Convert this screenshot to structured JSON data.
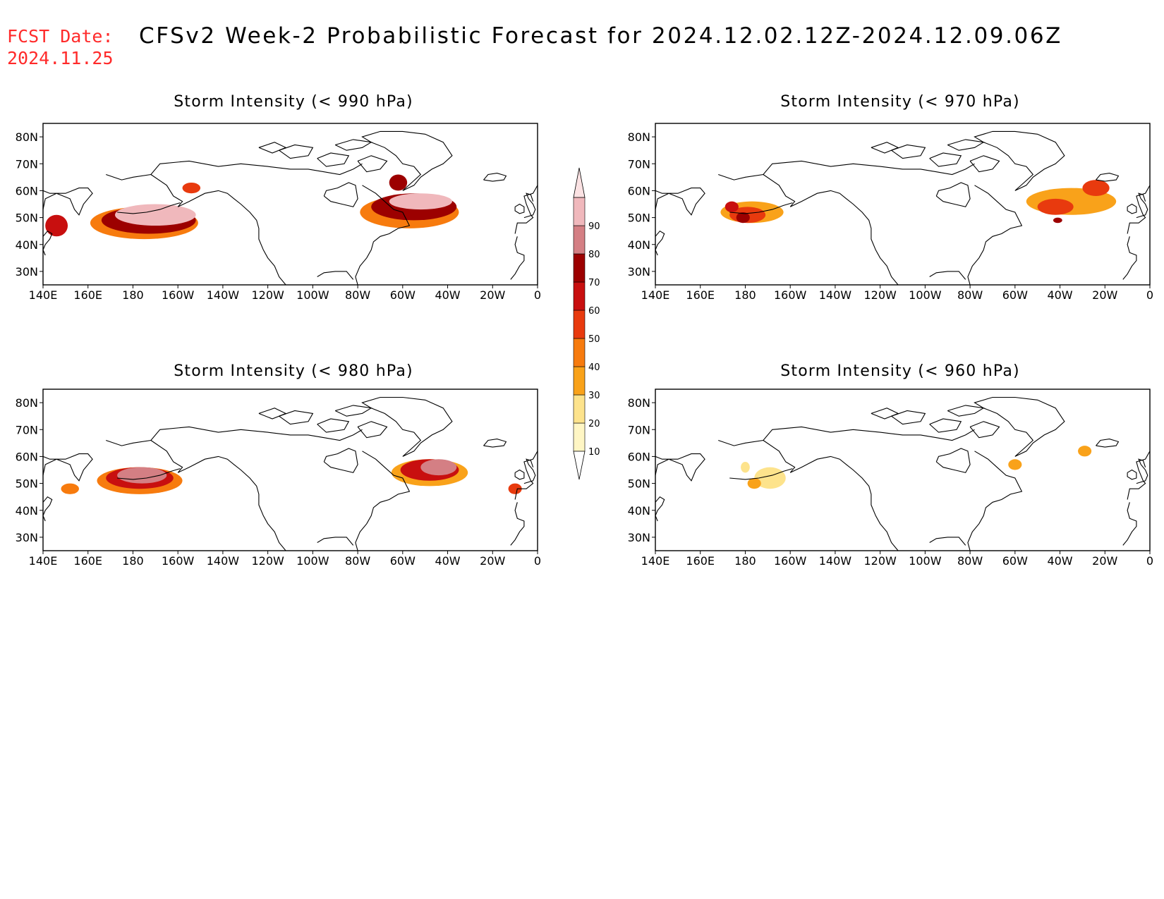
{
  "header": {
    "fcst_label": "FCST Date:",
    "fcst_date": "2024.11.25",
    "title": "CFSv2 Week-2 Probabilistic Forecast for 2024.12.02.12Z-2024.12.09.06Z"
  },
  "colorbar": {
    "levels": [
      "10",
      "20",
      "30",
      "40",
      "50",
      "60",
      "70",
      "80",
      "90"
    ],
    "colors": [
      "#fff6c4",
      "#fde38c",
      "#f9a21a",
      "#f77b0e",
      "#e83a0e",
      "#c80f0f",
      "#9c0000",
      "#d47f84",
      "#f0b8bc",
      "#fbe2e3"
    ]
  },
  "lat_labels": [
    "80N",
    "70N",
    "60N",
    "50N",
    "40N",
    "30N"
  ],
  "lon_labels": [
    "140E",
    "160E",
    "180",
    "160W",
    "140W",
    "120W",
    "100W",
    "80W",
    "60W",
    "40W",
    "20W",
    "0"
  ],
  "panels": [
    {
      "id": "p990",
      "title": "Storm Intensity (< 990 hPa)",
      "blobs": [
        {
          "lon": 185,
          "lat": 48,
          "rx": 24,
          "ry": 6,
          "level": 3
        },
        {
          "lon": 187,
          "lat": 49,
          "rx": 21,
          "ry": 5,
          "level": 6
        },
        {
          "lon": 190,
          "lat": 51,
          "rx": 18,
          "ry": 4,
          "level": 8
        },
        {
          "lon": 146,
          "lat": 47,
          "rx": 5,
          "ry": 4,
          "level": 5
        },
        {
          "lon": 206,
          "lat": 61,
          "rx": 4,
          "ry": 2,
          "level": 4
        },
        {
          "lon": 303,
          "lat": 52,
          "rx": 22,
          "ry": 6,
          "level": 3
        },
        {
          "lon": 305,
          "lat": 54,
          "rx": 19,
          "ry": 5,
          "level": 6
        },
        {
          "lon": 308,
          "lat": 56,
          "rx": 14,
          "ry": 3,
          "level": 8
        },
        {
          "lon": 298,
          "lat": 63,
          "rx": 4,
          "ry": 3,
          "level": 6
        }
      ]
    },
    {
      "id": "p980",
      "title": "Storm Intensity (< 980 hPa)",
      "blobs": [
        {
          "lon": 183,
          "lat": 51,
          "rx": 19,
          "ry": 5,
          "level": 3
        },
        {
          "lon": 183,
          "lat": 52,
          "rx": 15,
          "ry": 4,
          "level": 5
        },
        {
          "lon": 184,
          "lat": 53,
          "rx": 11,
          "ry": 3,
          "level": 7
        },
        {
          "lon": 152,
          "lat": 48,
          "rx": 4,
          "ry": 2,
          "level": 3
        },
        {
          "lon": 312,
          "lat": 54,
          "rx": 17,
          "ry": 5,
          "level": 2
        },
        {
          "lon": 312,
          "lat": 55,
          "rx": 13,
          "ry": 4,
          "level": 5
        },
        {
          "lon": 316,
          "lat": 56,
          "rx": 8,
          "ry": 3,
          "level": 7
        },
        {
          "lon": 350,
          "lat": 48,
          "rx": 3,
          "ry": 2,
          "level": 4
        }
      ]
    },
    {
      "id": "p970",
      "title": "Storm Intensity (< 970 hPa)",
      "blobs": [
        {
          "lon": 183,
          "lat": 52,
          "rx": 14,
          "ry": 4,
          "level": 2
        },
        {
          "lon": 181,
          "lat": 51,
          "rx": 8,
          "ry": 3,
          "level": 4
        },
        {
          "lon": 179,
          "lat": 50,
          "rx": 3,
          "ry": 2,
          "level": 6
        },
        {
          "lon": 174,
          "lat": 54,
          "rx": 3,
          "ry": 2,
          "level": 5
        },
        {
          "lon": 325,
          "lat": 56,
          "rx": 20,
          "ry": 5,
          "level": 2
        },
        {
          "lon": 318,
          "lat": 54,
          "rx": 8,
          "ry": 3,
          "level": 4
        },
        {
          "lon": 336,
          "lat": 61,
          "rx": 6,
          "ry": 3,
          "level": 4
        },
        {
          "lon": 319,
          "lat": 49,
          "rx": 2,
          "ry": 1,
          "level": 6
        }
      ]
    },
    {
      "id": "p960",
      "title": "Storm Intensity (< 960 hPa)",
      "blobs": [
        {
          "lon": 191,
          "lat": 52,
          "rx": 7,
          "ry": 4,
          "level": 1
        },
        {
          "lon": 184,
          "lat": 50,
          "rx": 3,
          "ry": 2,
          "level": 2
        },
        {
          "lon": 180,
          "lat": 56,
          "rx": 2,
          "ry": 2,
          "level": 1
        },
        {
          "lon": 300,
          "lat": 57,
          "rx": 3,
          "ry": 2,
          "level": 2
        },
        {
          "lon": 331,
          "lat": 62,
          "rx": 3,
          "ry": 2,
          "level": 2
        }
      ]
    }
  ]
}
